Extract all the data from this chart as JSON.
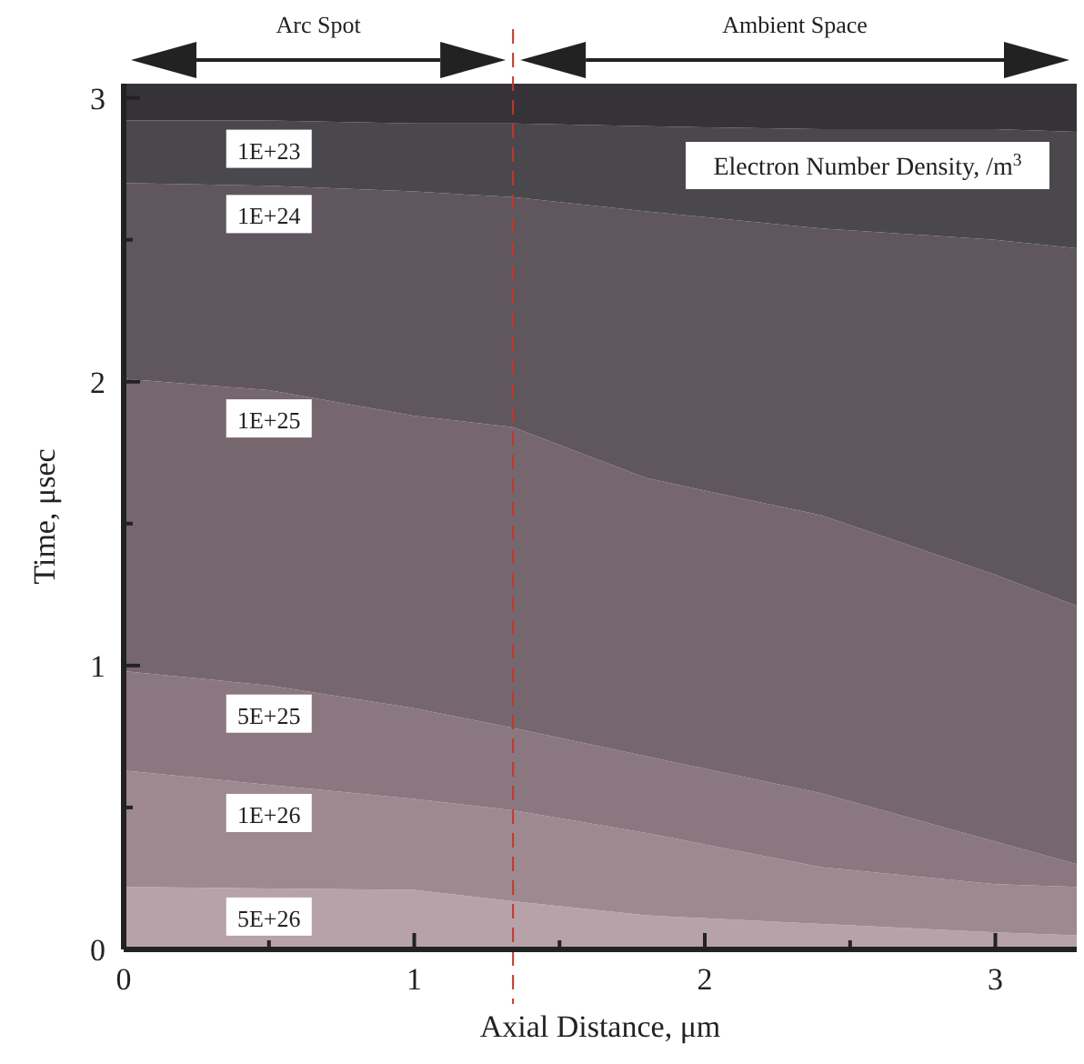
{
  "chart_data": {
    "type": "area",
    "stacked": true,
    "title": "Electron Number Density, /m$^{3}$",
    "xlabel": "Axial Distance, μm",
    "ylabel": "Time, μsec",
    "xlim": [
      0,
      3.28
    ],
    "ylim": [
      0,
      3.05
    ],
    "xticks": [
      0,
      {
        "value": 0.5,
        "label": null
      },
      1,
      {
        "value": 1.5,
        "label": null
      },
      2,
      {
        "value": 2.5,
        "label": null
      },
      3
    ],
    "yticks": [
      0,
      {
        "value": 0.5,
        "label": null
      },
      1,
      {
        "value": 1.5,
        "label": null
      },
      2,
      {
        "value": 2.5,
        "label": null
      },
      3
    ],
    "ref_lines": [
      {
        "axis": "x",
        "value": 1.34,
        "color": "#c0392b",
        "line_style": "dashed"
      }
    ],
    "annotations": [
      "Arc Spot",
      "Ambient Space"
    ],
    "x": [
      0,
      0.5,
      1,
      1.34,
      1.8,
      2.4,
      3,
      3.28
    ],
    "series": [
      {
        "name": "5E+26",
        "color": "#b6a2a8",
        "values": [
          0.22,
          0.215,
          0.21,
          0.17,
          0.12,
          0.09,
          0.06,
          0.05
        ]
      },
      {
        "name": "1E+26",
        "color": "#9e8990",
        "values": [
          0.41,
          0.365,
          0.32,
          0.32,
          0.29,
          0.2,
          0.17,
          0.17
        ]
      },
      {
        "name": "5E+25",
        "color": "#8a777f",
        "values": [
          0.35,
          0.35,
          0.32,
          0.29,
          0.27,
          0.26,
          0.15,
          0.08
        ]
      },
      {
        "name": "1E+25",
        "color": "#76676f",
        "values": [
          1.03,
          1.04,
          1.03,
          1.06,
          0.98,
          0.98,
          0.94,
          0.91
        ]
      },
      {
        "name": "1E+24",
        "color": "#5f565e",
        "values": [
          0.69,
          0.72,
          0.79,
          0.81,
          0.94,
          1.01,
          1.18,
          1.26
        ]
      },
      {
        "name": "1E+23",
        "color": "#4a474d",
        "values": [
          0.22,
          0.23,
          0.24,
          0.26,
          0.3,
          0.35,
          0.39,
          0.41
        ]
      },
      {
        "color": "#353238",
        "values": [
          0.13,
          0.13,
          0.14,
          0.14,
          0.15,
          0.16,
          0.16,
          0.17
        ]
      }
    ]
  }
}
